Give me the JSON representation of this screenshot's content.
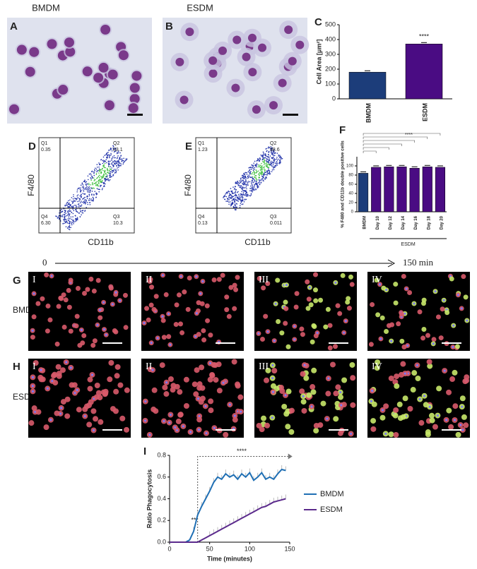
{
  "header": {
    "left": "BMDM",
    "right": "ESDM"
  },
  "panel_letters": [
    "A",
    "B",
    "C",
    "D",
    "E",
    "F",
    "G",
    "H",
    "I"
  ],
  "flow_plots": [
    {
      "y_label": "F4/80",
      "x_label": "CD11b",
      "quadrants": [
        {
          "name": "Q1",
          "value": "0.35"
        },
        {
          "name": "Q2",
          "value": "83.1"
        },
        {
          "name": "Q4",
          "value": "6.30"
        },
        {
          "name": "Q3",
          "value": "10.3"
        }
      ]
    },
    {
      "y_label": "F4/80",
      "x_label": "CD11b",
      "quadrants": [
        {
          "name": "Q1",
          "value": "1.23"
        },
        {
          "name": "Q2",
          "value": "98.6"
        },
        {
          "name": "Q4",
          "value": "0.13"
        },
        {
          "name": "Q3",
          "value": "0.011"
        }
      ]
    }
  ],
  "timeline": {
    "start": "0",
    "end": "150 min"
  },
  "rows": [
    "BMDM",
    "ESDM"
  ],
  "frame_labels": [
    "I",
    "II",
    "III",
    "IV"
  ],
  "chart_data": [
    {
      "type": "bar",
      "y_label": "Cell Area [μm²]",
      "categories": [
        "BMDM",
        "ESDM"
      ],
      "values": [
        180,
        370
      ],
      "colors": [
        "#1c3d7a",
        "#4a0c83"
      ],
      "ylim": [
        0,
        500
      ],
      "yticks": [
        0,
        100,
        200,
        300,
        400,
        500
      ],
      "annotations": [
        "****"
      ]
    },
    {
      "type": "bar",
      "y_label": "% F480 and CD11b double positive cells",
      "group_label": "ESDM",
      "categories": [
        "BMDM",
        "Day 10",
        "Day 12",
        "Day 14",
        "Day 16",
        "Day 18",
        "Day 20"
      ],
      "values": [
        84,
        97,
        98,
        98,
        95,
        98,
        97
      ],
      "colors": [
        "#1c3d7a",
        "#4a0c83",
        "#4a0c83",
        "#4a0c83",
        "#4a0c83",
        "#4a0c83",
        "#4a0c83"
      ],
      "ylim": [
        0,
        120
      ],
      "yticks": [
        0,
        20,
        40,
        60,
        80,
        100
      ],
      "annotations": [
        "****"
      ]
    },
    {
      "type": "line",
      "x_label": "Time (minutes)",
      "y_label": "Ratio Phagocytosis",
      "x": [
        0,
        5,
        10,
        15,
        20,
        25,
        30,
        35,
        40,
        45,
        50,
        55,
        60,
        65,
        70,
        75,
        80,
        85,
        90,
        95,
        100,
        105,
        110,
        115,
        120,
        125,
        130,
        135,
        140,
        145
      ],
      "series": [
        {
          "name": "BMDM",
          "color": "#1f6fb4",
          "values": [
            0,
            0,
            0,
            0,
            0,
            0.02,
            0.1,
            0.25,
            0.33,
            0.4,
            0.47,
            0.55,
            0.6,
            0.58,
            0.63,
            0.6,
            0.62,
            0.58,
            0.63,
            0.6,
            0.64,
            0.57,
            0.6,
            0.64,
            0.58,
            0.6,
            0.58,
            0.63,
            0.67,
            0.66
          ]
        },
        {
          "name": "ESDM",
          "color": "#5b2a8c",
          "values": [
            0,
            0,
            0,
            0,
            0,
            0,
            0,
            0,
            0.02,
            0.04,
            0.06,
            0.08,
            0.1,
            0.12,
            0.14,
            0.16,
            0.18,
            0.2,
            0.22,
            0.24,
            0.26,
            0.28,
            0.3,
            0.32,
            0.33,
            0.35,
            0.37,
            0.38,
            0.39,
            0.4
          ]
        }
      ],
      "xlim": [
        0,
        150
      ],
      "xticks": [
        0,
        50,
        100,
        150
      ],
      "ylim": [
        0,
        0.8
      ],
      "yticks": [
        {
          "value": 0,
          "label": "0.0"
        },
        0.2,
        0.4,
        0.6,
        0.8
      ],
      "annotations": [
        "****",
        "**"
      ]
    }
  ]
}
